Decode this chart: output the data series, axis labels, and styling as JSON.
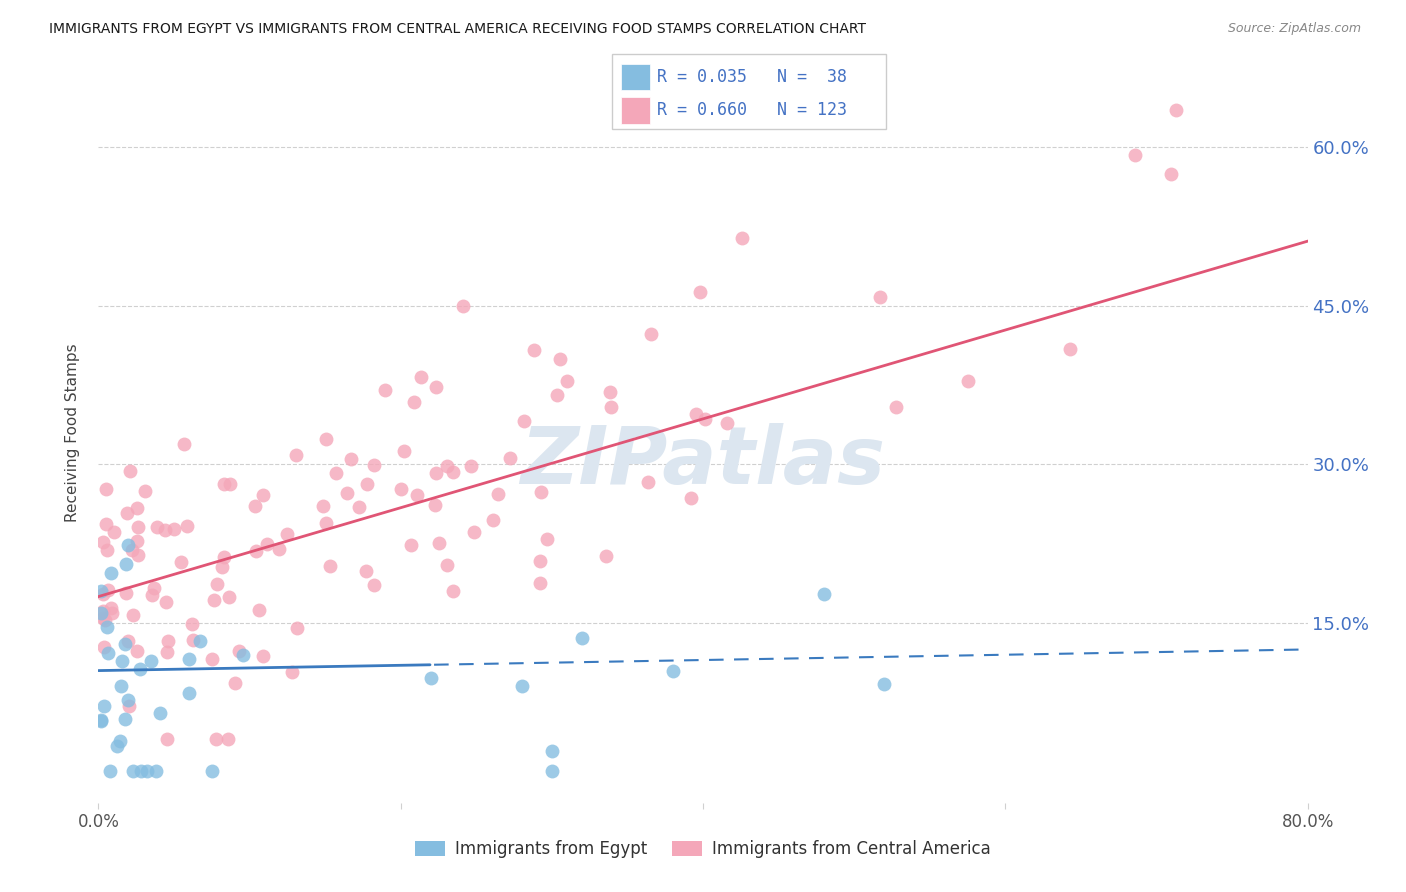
{
  "title": "IMMIGRANTS FROM EGYPT VS IMMIGRANTS FROM CENTRAL AMERICA RECEIVING FOOD STAMPS CORRELATION CHART",
  "source": "Source: ZipAtlas.com",
  "ylabel": "Receiving Food Stamps",
  "xlim": [
    0.0,
    0.8
  ],
  "ylim": [
    -0.02,
    0.68
  ],
  "yticks": [
    0.0,
    0.15,
    0.3,
    0.45,
    0.6
  ],
  "ytick_labels": [
    "",
    "15.0%",
    "30.0%",
    "45.0%",
    "60.0%"
  ],
  "xticks": [
    0.0,
    0.2,
    0.4,
    0.6,
    0.8
  ],
  "xtick_labels": [
    "0.0%",
    "",
    "",
    "",
    "80.0%"
  ],
  "egypt_color": "#85bde0",
  "central_america_color": "#f4a7b9",
  "egypt_line_color": "#3a7abf",
  "central_america_line_color": "#e05575",
  "egypt_R": 0.035,
  "egypt_N": 38,
  "central_america_R": 0.66,
  "central_america_N": 123,
  "background_color": "#ffffff",
  "grid_color": "#d0d0d0",
  "right_tick_color": "#4472c4",
  "watermark_color": "#dce6f0",
  "egypt_line_solid_end": 0.22,
  "egypt_line_intercept": 0.105,
  "egypt_line_slope": 0.025,
  "ca_line_intercept": 0.175,
  "ca_line_slope": 0.42
}
